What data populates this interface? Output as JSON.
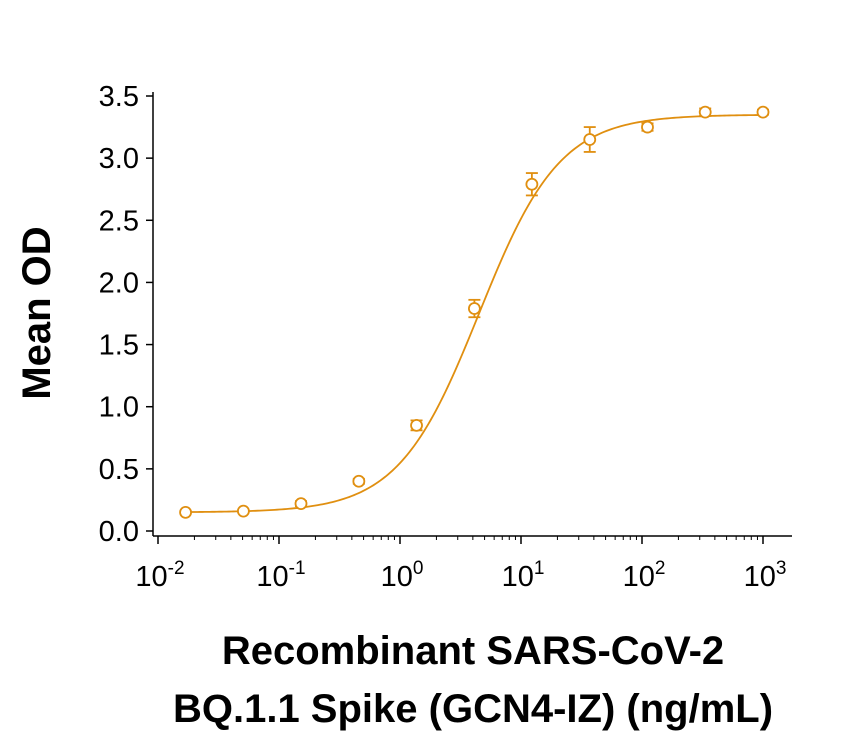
{
  "chart_data": {
    "type": "scatter",
    "x_scale": "log",
    "xlim": [
      0.01,
      1000
    ],
    "ylim": [
      0.0,
      3.5
    ],
    "x_ticks": [
      {
        "base": "10",
        "exp": "-2"
      },
      {
        "base": "10",
        "exp": "-1"
      },
      {
        "base": "10",
        "exp": "0"
      },
      {
        "base": "10",
        "exp": "1"
      },
      {
        "base": "10",
        "exp": "2"
      },
      {
        "base": "10",
        "exp": "3"
      }
    ],
    "y_ticks": [
      "0.0",
      "0.5",
      "1.0",
      "1.5",
      "2.0",
      "2.5",
      "3.0",
      "3.5"
    ],
    "ylabel": "Mean OD",
    "xlabel_line1": "Recombinant SARS-CoV-2",
    "xlabel_line2": "BQ.1.1 Spike (GCN4-IZ) (ng/mL)",
    "grid": false,
    "legend": "none",
    "color": "#E08F10",
    "series": [
      {
        "x": [
          0.0169,
          0.0508,
          0.152,
          0.457,
          1.37,
          4.12,
          12.3,
          37.0,
          111,
          333,
          1000
        ],
        "y": [
          0.15,
          0.16,
          0.22,
          0.4,
          0.85,
          1.79,
          2.79,
          3.15,
          3.25,
          3.37,
          3.37
        ],
        "err": [
          0.01,
          0.01,
          0.02,
          0.02,
          0.04,
          0.07,
          0.09,
          0.1,
          0.03,
          0.03,
          0.02
        ]
      }
    ],
    "fit": {
      "bottom": 0.15,
      "top": 3.35,
      "ec50": 4.5,
      "hill": 1.3
    }
  }
}
